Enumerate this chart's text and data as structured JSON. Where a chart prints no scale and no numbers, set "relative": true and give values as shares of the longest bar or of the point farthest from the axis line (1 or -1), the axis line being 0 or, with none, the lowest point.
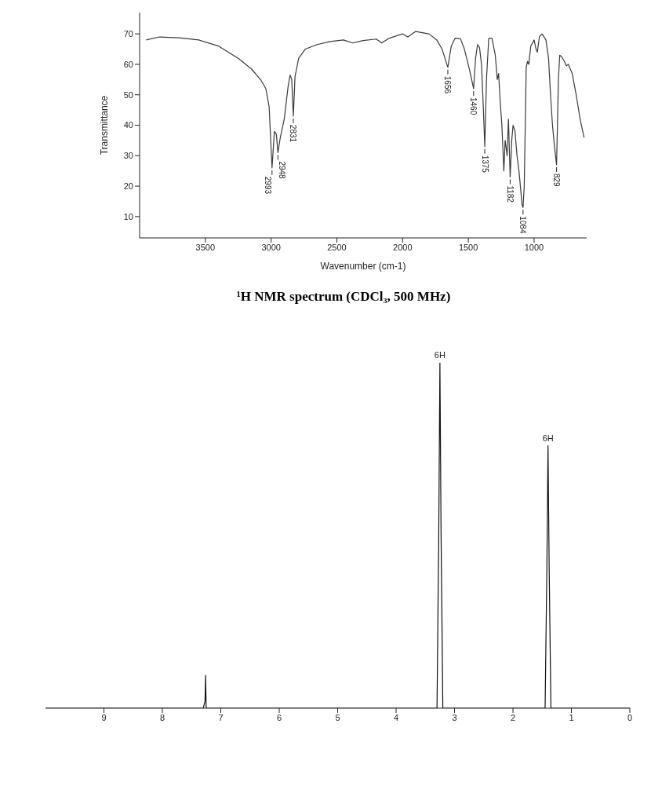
{
  "chart_data": [
    {
      "type": "line",
      "xlabel": "Wavenumber (cm-1)",
      "ylabel": "Transmittance",
      "xlim": [
        4000,
        600
      ],
      "ylim": [
        3,
        77
      ],
      "xticks": [
        3500,
        3000,
        2500,
        2000,
        1500,
        1000
      ],
      "yticks": [
        10,
        20,
        30,
        40,
        50,
        60,
        70
      ],
      "x": [
        3950,
        3850,
        3700,
        3550,
        3400,
        3250,
        3150,
        3080,
        3040,
        3015,
        2993,
        2975,
        2960,
        2948,
        2930,
        2900,
        2870,
        2855,
        2843,
        2831,
        2818,
        2790,
        2740,
        2650,
        2550,
        2450,
        2380,
        2300,
        2200,
        2160,
        2100,
        2000,
        1960,
        1900,
        1800,
        1740,
        1700,
        1656,
        1630,
        1600,
        1560,
        1530,
        1490,
        1460,
        1445,
        1430,
        1415,
        1400,
        1390,
        1375,
        1362,
        1345,
        1320,
        1295,
        1280,
        1270,
        1258,
        1245,
        1230,
        1220,
        1205,
        1195,
        1182,
        1170,
        1160,
        1145,
        1130,
        1115,
        1100,
        1092,
        1084,
        1075,
        1065,
        1060,
        1050,
        1040,
        1025,
        1000,
        985,
        975,
        960,
        940,
        910,
        890,
        875,
        860,
        845,
        829,
        815,
        805,
        790,
        770,
        755,
        740,
        710,
        680,
        650,
        620
      ],
      "series": [
        {
          "color": "#3a3a3a",
          "values": [
            68,
            69,
            68.7,
            68,
            66,
            62,
            58.5,
            55,
            52,
            46,
            26,
            38,
            37,
            31,
            36,
            42,
            53,
            56.5,
            55,
            43,
            56,
            62,
            65,
            66.5,
            67.5,
            68,
            67,
            67.8,
            68.3,
            67,
            68.6,
            70,
            69,
            70.8,
            70,
            68,
            65,
            59,
            66,
            68.6,
            68.4,
            65,
            58,
            52,
            62,
            66.5,
            65.5,
            60,
            50,
            33,
            55,
            68.5,
            68.5,
            63,
            55,
            57,
            48,
            40,
            25,
            35,
            30,
            42,
            23,
            35,
            40,
            38,
            30,
            25,
            18,
            14,
            13,
            20,
            45,
            59,
            61,
            60,
            66,
            68,
            65,
            64,
            69,
            70,
            68,
            62,
            50,
            40,
            33,
            27,
            55,
            63,
            62.5,
            61,
            59.5,
            60,
            57,
            50,
            42,
            36
          ]
        }
      ],
      "annotations": [
        {
          "text": "2993",
          "x": 2993,
          "y": 26
        },
        {
          "text": "2948",
          "x": 2948,
          "y": 31
        },
        {
          "text": "2831",
          "x": 2831,
          "y": 43
        },
        {
          "text": "1656",
          "x": 1656,
          "y": 59
        },
        {
          "text": "1460",
          "x": 1460,
          "y": 52
        },
        {
          "text": "1375",
          "x": 1375,
          "y": 33
        },
        {
          "text": "1182",
          "x": 1182,
          "y": 23
        },
        {
          "text": "1084",
          "x": 1084,
          "y": 13
        },
        {
          "text": "829",
          "x": 829,
          "y": 27
        }
      ]
    },
    {
      "type": "line",
      "title": "¹H NMR spectrum (CDCl₃, 500 MHz)",
      "relative": true,
      "xlim": [
        10,
        0
      ],
      "xticks": [
        9,
        8,
        7,
        6,
        5,
        4,
        3,
        2,
        1,
        0
      ],
      "x": [
        10,
        7.3,
        7.27,
        7.26,
        7.25,
        3.3,
        3.27,
        3.25,
        3.23,
        3.2,
        1.45,
        1.42,
        1.4,
        1.38,
        1.35,
        0
      ],
      "series": [
        {
          "color": "#111111",
          "values": [
            0,
            0,
            0.02,
            0.095,
            0,
            0,
            0.5,
            1,
            0.5,
            0,
            0,
            0.4,
            0.76,
            0.4,
            0,
            0
          ]
        }
      ],
      "annotations": [
        {
          "text": "6H",
          "x": 3.25,
          "y": 1
        },
        {
          "text": "6H",
          "x": 1.4,
          "y": 0.76
        }
      ]
    }
  ]
}
